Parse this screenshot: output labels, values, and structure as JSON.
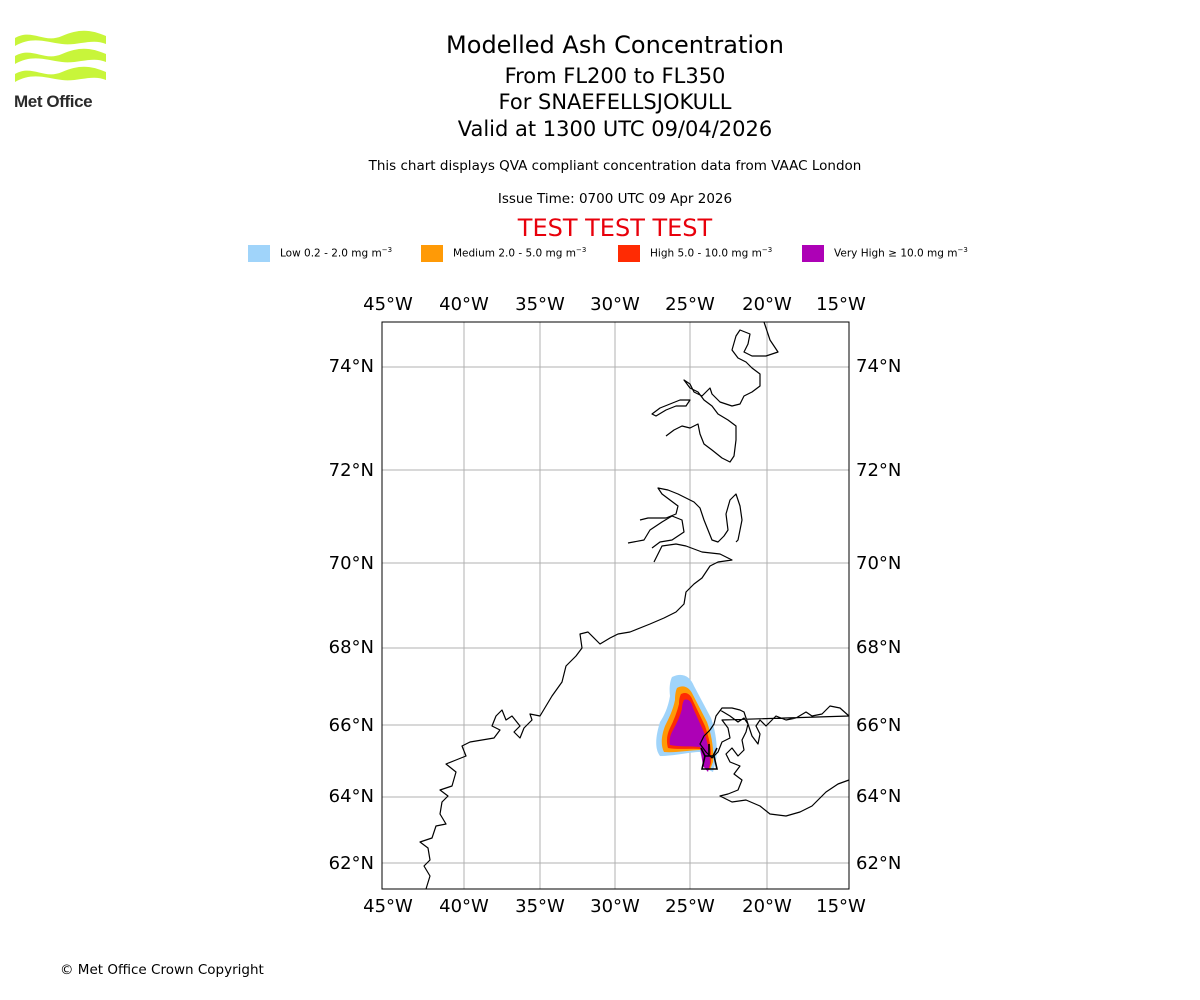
{
  "logo": {
    "text": "Met Office",
    "color": "#c8f53a"
  },
  "header": {
    "title": "Modelled Ash Concentration",
    "levels": "From FL200 to FL350",
    "volcano": "For SNAEFELLSJOKULL",
    "valid": "Valid at 1300 UTC 09/04/2026",
    "note": "This chart displays QVA compliant concentration data from VAAC London",
    "issue": "Issue Time: 0700 UTC 09 Apr 2026",
    "test": "TEST TEST TEST"
  },
  "legend": [
    {
      "level": "Low",
      "range": "0.2 - 2.0 mg m",
      "unit_exp": "−3",
      "color": "#a0d4fa"
    },
    {
      "level": "Medium",
      "range": "2.0 - 5.0 mg m",
      "unit_exp": "−3",
      "color": "#ff9a06"
    },
    {
      "level": "High",
      "range": "5.0 - 10.0 mg m",
      "unit_exp": "−3",
      "color": "#ff2b03"
    },
    {
      "level": "Very High",
      "range": "≥  10.0 mg m",
      "unit_exp": "−3",
      "color": "#ad01b6"
    }
  ],
  "map": {
    "lon_ticks": [
      "45°W",
      "40°W",
      "35°W",
      "30°W",
      "25°W",
      "20°W",
      "15°W"
    ],
    "lat_ticks": [
      "74°N",
      "72°N",
      "70°N",
      "68°N",
      "66°N",
      "64°N",
      "62°N"
    ],
    "volcano_marker": "volcano-marker-icon"
  },
  "footer": {
    "copyright": "© Met Office Crown Copyright"
  }
}
